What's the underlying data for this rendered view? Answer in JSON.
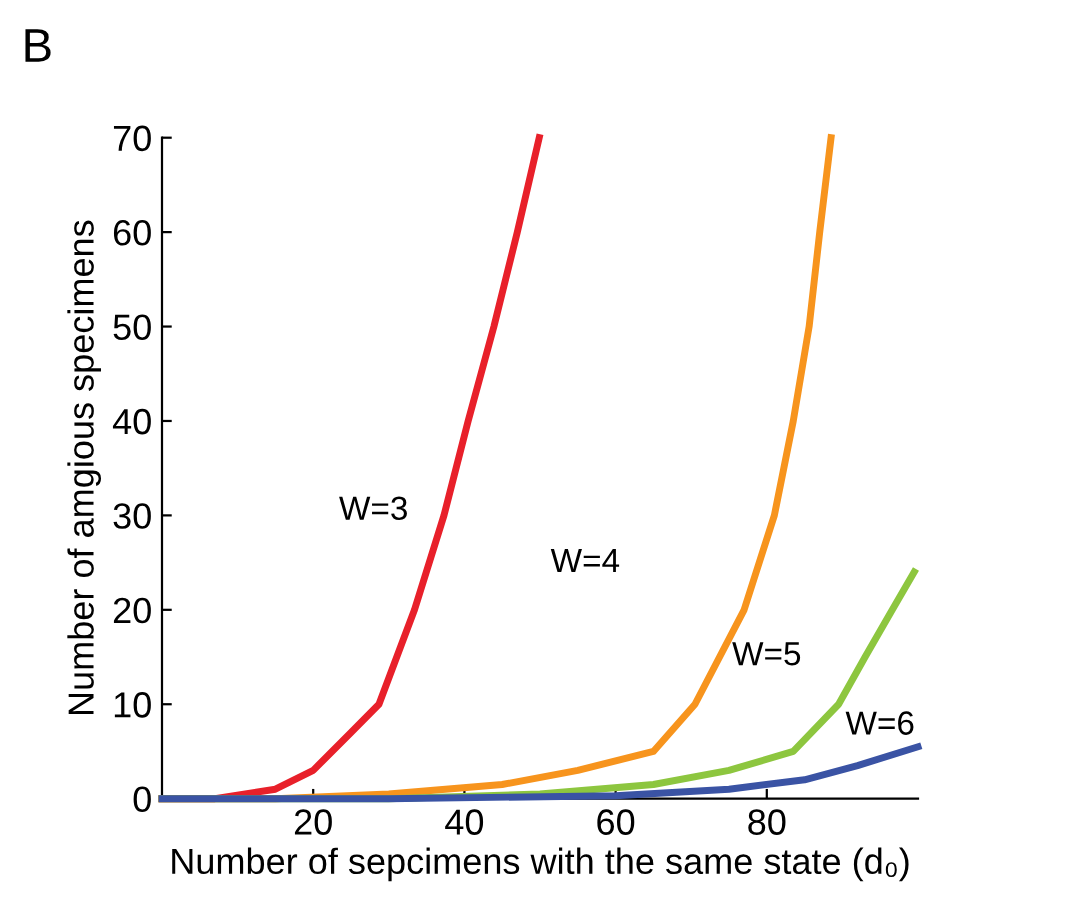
{
  "chart_data": {
    "type": "line",
    "xlabel": "Number of sepcimens with the same state (d₀)",
    "ylabel": "Number of amgious specimens",
    "xlim": [
      0,
      100
    ],
    "ylim": [
      0,
      70
    ],
    "xticks": [
      20,
      40,
      60,
      80
    ],
    "yticks": [
      0,
      10,
      20,
      30,
      40,
      50,
      60,
      70
    ],
    "grid": false,
    "legend": false,
    "marker": "none",
    "line_style": "solid",
    "series": [
      {
        "color": "#e8202a",
        "x": [
          0,
          7,
          15,
          20,
          25,
          28.7,
          33.4,
          37.3,
          40.5,
          43.9,
          47,
          49.9
        ],
        "values": [
          0,
          0,
          1,
          3,
          7,
          10,
          20,
          30,
          40,
          50,
          60,
          70
        ]
      },
      {
        "color": "#f7941d",
        "x": [
          0,
          15,
          30,
          45,
          55,
          65,
          70.5,
          77,
          81,
          83.5,
          85.6,
          87,
          88.5
        ],
        "values": [
          0,
          0,
          0.5,
          1.5,
          3,
          5,
          10,
          20,
          30,
          40,
          50,
          60,
          70
        ]
      },
      {
        "color": "#8dc63f",
        "x": [
          0,
          30,
          50,
          65,
          75,
          83.5,
          89.5,
          93,
          96.6,
          99.5
        ],
        "values": [
          0,
          0,
          0.5,
          1.5,
          3,
          5,
          10,
          15,
          20,
          24
        ]
      },
      {
        "color": "#3a53a4",
        "x": [
          0,
          30,
          60,
          75,
          85,
          92,
          100
        ],
        "values": [
          0,
          0,
          0.3,
          1,
          2,
          3.5,
          5.5
        ]
      }
    ],
    "annotations": [
      "B",
      "W=3",
      "W=4",
      "W=5",
      "W=6"
    ]
  }
}
